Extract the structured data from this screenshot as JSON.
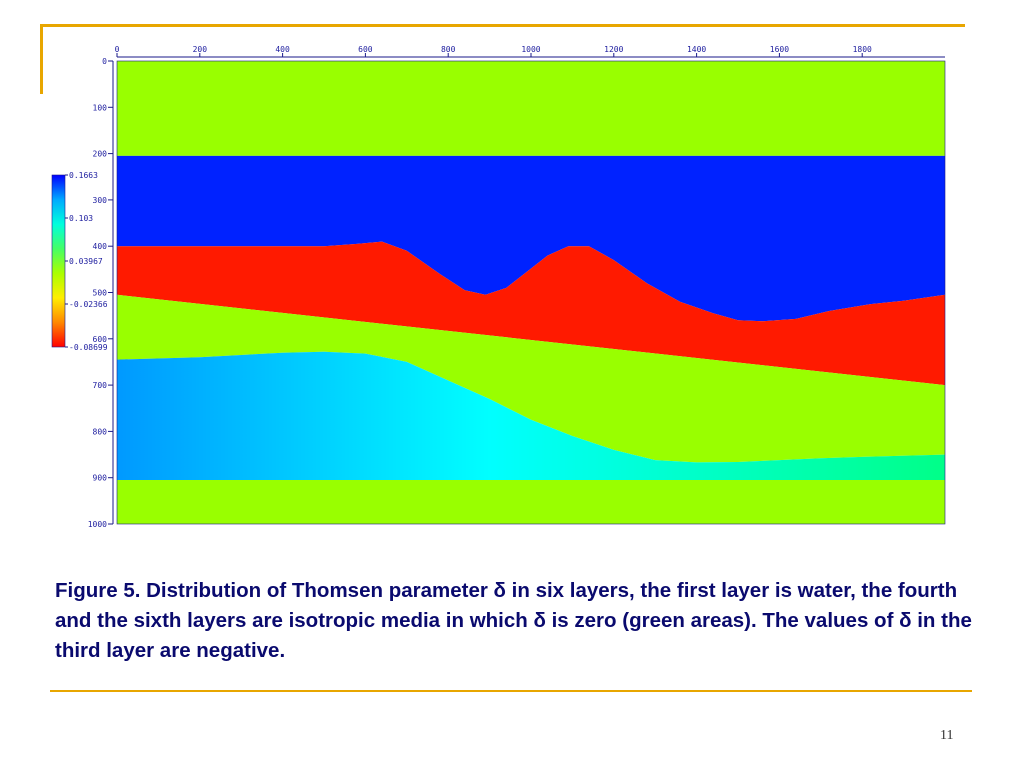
{
  "slide": {
    "caption": "Figure 5. Distribution of Thomsen parameter δ in six layers, the first layer is water, the fourth and the sixth layers are isotropic media in which δ is zero (green areas).  The values of δ in the third layer are negative.",
    "page_number": "11"
  },
  "colors": {
    "accent_lines": "#e8a600",
    "caption_text": "#0a0a6e"
  },
  "chart_data": {
    "type": "heatmap",
    "title": "",
    "xlabel": "",
    "ylabel": "",
    "xlim": [
      0,
      2000
    ],
    "ylim": [
      0,
      1000
    ],
    "x_ticks": [
      0,
      200,
      400,
      600,
      800,
      1000,
      1200,
      1400,
      1600,
      1800
    ],
    "y_ticks": [
      0,
      100,
      200,
      300,
      400,
      500,
      600,
      700,
      800,
      900,
      1000
    ],
    "colorbar": {
      "tick_labels": [
        "0.1663",
        "0.103",
        "0.03967",
        "-0.02366",
        "-0.08699"
      ],
      "min": -0.08699,
      "max": 0.1663,
      "gradient_colors": [
        "#0000ff",
        "#00aaff",
        "#00ffdd",
        "#44ff66",
        "#aaff00",
        "#ffee00",
        "#ff8800",
        "#ff0000"
      ]
    },
    "layers": [
      {
        "name": "layer 1",
        "color": "#99ff00",
        "boundary": [
          [
            0,
            0
          ],
          [
            2000,
            0
          ]
        ]
      },
      {
        "name": "layer 2",
        "color": "#0022ff",
        "boundary": [
          [
            0,
            205
          ],
          [
            2000,
            205
          ]
        ]
      },
      {
        "name": "layer 3",
        "color": "#ff1a00",
        "boundary": [
          [
            0,
            400
          ],
          [
            500,
            400
          ],
          [
            580,
            395
          ],
          [
            640,
            390
          ],
          [
            700,
            410
          ],
          [
            780,
            460
          ],
          [
            840,
            495
          ],
          [
            890,
            505
          ],
          [
            940,
            490
          ],
          [
            990,
            455
          ],
          [
            1040,
            420
          ],
          [
            1090,
            400
          ],
          [
            1140,
            400
          ],
          [
            1200,
            430
          ],
          [
            1280,
            480
          ],
          [
            1360,
            520
          ],
          [
            1440,
            545
          ],
          [
            1500,
            560
          ],
          [
            1560,
            562
          ],
          [
            1640,
            557
          ],
          [
            1720,
            540
          ],
          [
            1820,
            525
          ],
          [
            1900,
            518
          ],
          [
            2000,
            505
          ]
        ]
      },
      {
        "name": "layer 4",
        "color": "#99ff00",
        "boundary": [
          [
            0,
            505
          ],
          [
            2000,
            700
          ]
        ]
      },
      {
        "name": "layer 5",
        "color": "#00ffff",
        "boundary": [
          [
            0,
            645
          ],
          [
            200,
            640
          ],
          [
            400,
            630
          ],
          [
            500,
            628
          ],
          [
            600,
            632
          ],
          [
            700,
            650
          ],
          [
            800,
            690
          ],
          [
            900,
            730
          ],
          [
            1000,
            775
          ],
          [
            1100,
            810
          ],
          [
            1200,
            840
          ],
          [
            1300,
            862
          ],
          [
            1400,
            867
          ],
          [
            1500,
            866
          ],
          [
            1600,
            862
          ],
          [
            1700,
            858
          ],
          [
            1800,
            855
          ],
          [
            2000,
            850
          ]
        ]
      },
      {
        "name": "layer 6",
        "color": "#99ff00",
        "boundary": [
          [
            0,
            905
          ],
          [
            2000,
            905
          ]
        ]
      }
    ]
  }
}
